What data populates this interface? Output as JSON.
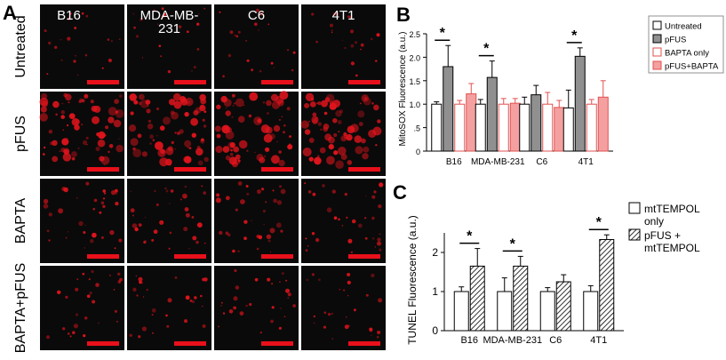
{
  "panel_a": {
    "letter": "A",
    "columns": [
      "B16",
      "MDA-MB-\n231",
      "C6",
      "4T1"
    ],
    "rows": [
      "Untreated",
      "pFUS",
      "BAPTA",
      "BAPTA+pFUS"
    ],
    "tile_color": "#0a0a0a",
    "signal_color": "#e0141c",
    "scale_bar_color": "#e8101a",
    "row_intensity": [
      0.15,
      0.85,
      0.35,
      0.25
    ]
  },
  "chart_data": [
    {
      "panel": "B",
      "type": "bar",
      "ylabel": "MitoSOX Fluorescence (a.u.)",
      "categories": [
        "B16",
        "MDA-MB-231",
        "C6",
        "4T1"
      ],
      "ylim": [
        0,
        2.5
      ],
      "yticks": [
        0,
        0.5,
        1.0,
        1.5,
        2.0,
        2.5
      ],
      "ytick_labels": [
        "0",
        ".5",
        "1.0",
        "1.5",
        "2.0",
        "2.5"
      ],
      "legend_position": "top-right",
      "series": [
        {
          "name": "Untreated",
          "values": [
            1.0,
            1.0,
            1.0,
            0.92
          ],
          "errors": [
            0.05,
            0.1,
            0.15,
            0.38
          ],
          "fill": "#ffffff",
          "stroke": "#000000"
        },
        {
          "name": "pFUS",
          "values": [
            1.8,
            1.57,
            1.2,
            2.02
          ],
          "errors": [
            0.45,
            0.35,
            0.2,
            0.18
          ],
          "fill": "#909090",
          "stroke": "#000000"
        },
        {
          "name": "BAPTA only",
          "values": [
            1.0,
            1.0,
            1.0,
            1.0
          ],
          "errors": [
            0.08,
            0.12,
            0.25,
            0.1
          ],
          "fill": "#ffffff",
          "stroke": "#e05050"
        },
        {
          "name": "pFUS+BAPTA",
          "values": [
            1.22,
            1.02,
            0.93,
            1.15
          ],
          "errors": [
            0.22,
            0.1,
            0.15,
            0.35
          ],
          "fill": "#f4a0a0",
          "stroke": "#e05050"
        }
      ],
      "significance": [
        {
          "category": 0,
          "label": "*"
        },
        {
          "category": 1,
          "label": "*"
        },
        {
          "category": 3,
          "label": "*"
        }
      ]
    },
    {
      "panel": "C",
      "type": "bar",
      "ylabel": "TUNEL Fluorescence (a.u.)",
      "categories": [
        "B16",
        "MDA-MB-231",
        "C6",
        "4T1"
      ],
      "ylim": [
        0,
        2.5
      ],
      "yticks": [
        0,
        1,
        2
      ],
      "ytick_labels": [
        "0",
        "1",
        "2"
      ],
      "legend_position": "top-right",
      "series": [
        {
          "name": "mtTEMPOL\nonly",
          "values": [
            1.0,
            1.0,
            1.0,
            1.0
          ],
          "errors": [
            0.12,
            0.35,
            0.1,
            0.15
          ],
          "fill": "#ffffff",
          "stroke": "#000000",
          "hatch": false
        },
        {
          "name": "pFUS +\nmtTEMPOL",
          "values": [
            1.65,
            1.65,
            1.25,
            2.33
          ],
          "errors": [
            0.45,
            0.25,
            0.18,
            0.12
          ],
          "fill": "#ffffff",
          "stroke": "#000000",
          "hatch": true
        }
      ],
      "significance": [
        {
          "category": 0,
          "label": "*"
        },
        {
          "category": 1,
          "label": "*"
        },
        {
          "category": 3,
          "label": "*"
        }
      ]
    }
  ]
}
